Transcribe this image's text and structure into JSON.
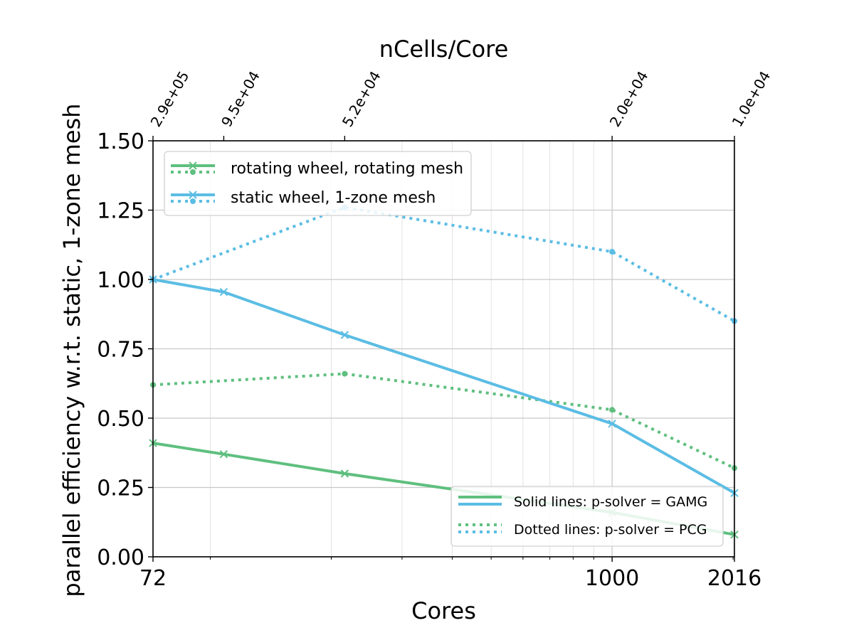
{
  "chart_data": {
    "type": "line",
    "xlabel": "Cores",
    "ylabel": "parallel efficiency w.r.t. static, 1-zone mesh",
    "top_xlabel": "nCells/Core",
    "x_scale": "log",
    "xlim": [
      72,
      2016
    ],
    "ylim": [
      0,
      1.5
    ],
    "grid": true,
    "x_ticks": [
      {
        "value": 72,
        "label": "72"
      },
      {
        "value": 1000,
        "label": "1000"
      },
      {
        "value": 2016,
        "label": "2016"
      }
    ],
    "y_ticks": [
      {
        "value": 0,
        "label": "0.00"
      },
      {
        "value": 0.25,
        "label": "0.25"
      },
      {
        "value": 0.5,
        "label": "0.50"
      },
      {
        "value": 0.75,
        "label": "0.75"
      },
      {
        "value": 1.0,
        "label": "1.00"
      },
      {
        "value": 1.25,
        "label": "1.25"
      },
      {
        "value": 1.5,
        "label": "1.50"
      }
    ],
    "top_ticks": [
      {
        "value": 72,
        "label": "2.9e+05"
      },
      {
        "value": 108,
        "label": "9.5e+04"
      },
      {
        "value": 216,
        "label": "5.2e+04"
      },
      {
        "value": 1000,
        "label": "2.0e+04"
      },
      {
        "value": 2016,
        "label": "1.0e+04"
      }
    ],
    "series": [
      {
        "name": "rotating wheel, rotating mesh",
        "solver": "GAMG",
        "style": "solid",
        "marker": "x",
        "color": "#5fbf7f",
        "x": [
          72,
          108,
          216,
          1000,
          2016
        ],
        "y": [
          0.41,
          0.37,
          0.3,
          0.16,
          0.08
        ]
      },
      {
        "name": "rotating wheel, rotating mesh",
        "solver": "PCG",
        "style": "dotted",
        "marker": "dot",
        "color": "#5fbf7f",
        "x": [
          72,
          216,
          1000,
          2016
        ],
        "y": [
          0.62,
          0.66,
          0.53,
          0.32
        ]
      },
      {
        "name": "static wheel, 1-zone mesh",
        "solver": "GAMG",
        "style": "solid",
        "marker": "x",
        "color": "#5bbde4",
        "x": [
          72,
          108,
          216,
          1000,
          2016
        ],
        "y": [
          1.0,
          0.955,
          0.8,
          0.48,
          0.23
        ]
      },
      {
        "name": "static wheel, 1-zone mesh",
        "solver": "PCG",
        "style": "dotted",
        "marker": "dot",
        "color": "#5bbde4",
        "x": [
          72,
          216,
          1000,
          2016
        ],
        "y": [
          1.0,
          1.26,
          1.1,
          0.85
        ]
      }
    ],
    "legend": {
      "placement": "top-left",
      "entries": [
        {
          "label": "rotating wheel, rotating mesh",
          "color": "#5fbf7f"
        },
        {
          "label": "static wheel, 1-zone mesh",
          "color": "#5bbde4"
        }
      ]
    },
    "style_legend": {
      "placement": "bottom-right",
      "entries": [
        {
          "label": "Solid lines: p-solver = GAMG",
          "style": "solid"
        },
        {
          "label": "Dotted lines: p-solver = PCG",
          "style": "dotted"
        }
      ]
    }
  }
}
